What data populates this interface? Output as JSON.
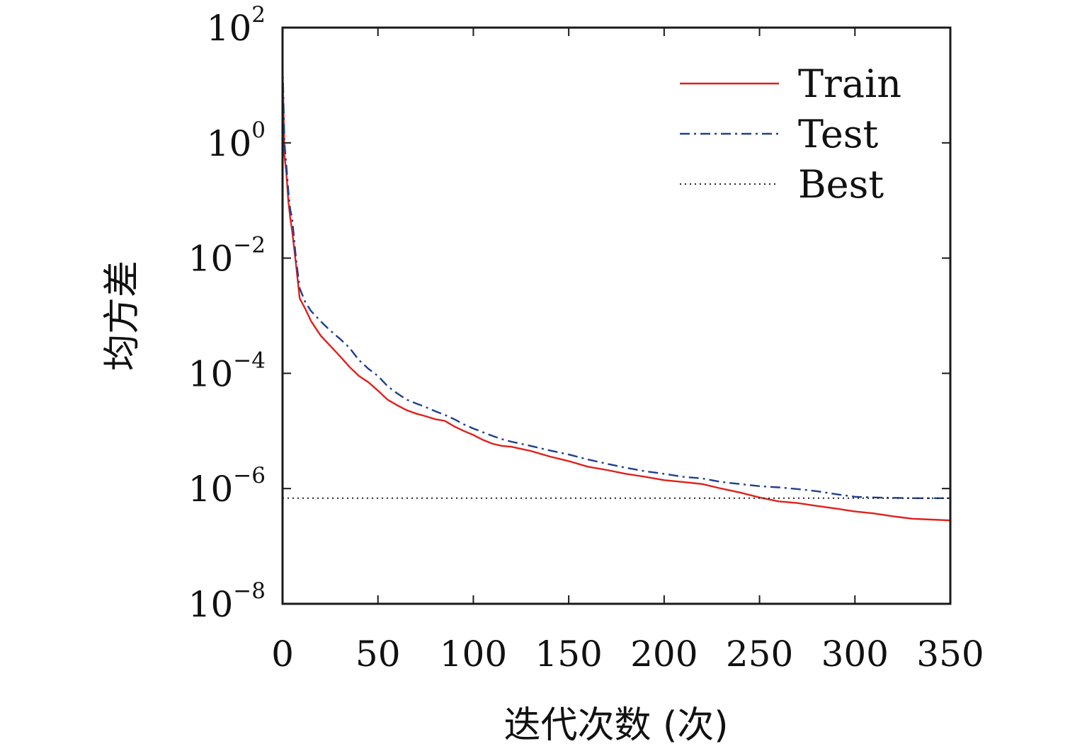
{
  "chart_data": {
    "type": "line",
    "xlabel": "迭代次数 (次)",
    "ylabel": "均方差",
    "xlim": [
      0,
      350
    ],
    "ylim": [
      1e-08,
      100
    ],
    "yscale": "log",
    "x_ticks": [
      {
        "value": 0,
        "label": "0"
      },
      {
        "value": 50,
        "label": "50"
      },
      {
        "value": 100,
        "label": "100"
      },
      {
        "value": 150,
        "label": "150"
      },
      {
        "value": 200,
        "label": "200"
      },
      {
        "value": 250,
        "label": "250"
      },
      {
        "value": 300,
        "label": "300"
      },
      {
        "value": 350,
        "label": "350"
      }
    ],
    "y_ticks": [
      {
        "value": 100,
        "base": "10",
        "exp": "2"
      },
      {
        "value": 1,
        "base": "10",
        "exp": "0"
      },
      {
        "value": 0.01,
        "base": "10",
        "exp": "−2"
      },
      {
        "value": 0.0001,
        "base": "10",
        "exp": "−4"
      },
      {
        "value": 1e-06,
        "base": "10",
        "exp": "−6"
      },
      {
        "value": 1e-08,
        "base": "10",
        "exp": "−8"
      }
    ],
    "grid": false,
    "legend_position": "top-right",
    "series": [
      {
        "name": "Train",
        "color": "#e0201b",
        "style": "solid",
        "points": [
          [
            0,
            20
          ],
          [
            1,
            0.6
          ],
          [
            2,
            0.3
          ],
          [
            3,
            0.1
          ],
          [
            4,
            0.05
          ],
          [
            5,
            0.03
          ],
          [
            7,
            0.008
          ],
          [
            9,
            0.002
          ],
          [
            12,
            0.0013
          ],
          [
            15,
            0.0008
          ],
          [
            20,
            0.00045
          ],
          [
            25,
            0.0003
          ],
          [
            30,
            0.0002
          ],
          [
            35,
            0.00013
          ],
          [
            40,
            9e-05
          ],
          [
            45,
            7e-05
          ],
          [
            50,
            5e-05
          ],
          [
            55,
            3.5e-05
          ],
          [
            60,
            2.8e-05
          ],
          [
            65,
            2.3e-05
          ],
          [
            70,
            2e-05
          ],
          [
            75,
            1.8e-05
          ],
          [
            80,
            1.6e-05
          ],
          [
            85,
            1.5e-05
          ],
          [
            90,
            1.2e-05
          ],
          [
            95,
            1e-05
          ],
          [
            100,
            8.5e-06
          ],
          [
            105,
            7e-06
          ],
          [
            110,
            6e-06
          ],
          [
            115,
            5.5e-06
          ],
          [
            120,
            5.3e-06
          ],
          [
            130,
            4.5e-06
          ],
          [
            140,
            3.6e-06
          ],
          [
            150,
            3e-06
          ],
          [
            160,
            2.4e-06
          ],
          [
            170,
            2.1e-06
          ],
          [
            180,
            1.8e-06
          ],
          [
            190,
            1.6e-06
          ],
          [
            200,
            1.4e-06
          ],
          [
            210,
            1.3e-06
          ],
          [
            220,
            1.2e-06
          ],
          [
            230,
            1e-06
          ],
          [
            240,
            8.5e-07
          ],
          [
            250,
            7e-07
          ],
          [
            260,
            6e-07
          ],
          [
            270,
            5.6e-07
          ],
          [
            280,
            5e-07
          ],
          [
            290,
            4.5e-07
          ],
          [
            300,
            4e-07
          ],
          [
            310,
            3.7e-07
          ],
          [
            320,
            3.3e-07
          ],
          [
            330,
            3e-07
          ],
          [
            340,
            2.9e-07
          ],
          [
            350,
            2.8e-07
          ]
        ]
      },
      {
        "name": "Test",
        "color": "#1f3f8f",
        "style": "dashdot",
        "points": [
          [
            0,
            25
          ],
          [
            1,
            1.0
          ],
          [
            2,
            0.4
          ],
          [
            3,
            0.15
          ],
          [
            4,
            0.07
          ],
          [
            5,
            0.05
          ],
          [
            7,
            0.01
          ],
          [
            9,
            0.003
          ],
          [
            12,
            0.0017
          ],
          [
            15,
            0.0012
          ],
          [
            20,
            0.0008
          ],
          [
            25,
            0.00055
          ],
          [
            30,
            0.0004
          ],
          [
            35,
            0.00028
          ],
          [
            40,
            0.00017
          ],
          [
            45,
            0.00012
          ],
          [
            50,
            9e-05
          ],
          [
            55,
            6e-05
          ],
          [
            60,
            4.5e-05
          ],
          [
            65,
            3.5e-05
          ],
          [
            70,
            3e-05
          ],
          [
            75,
            2.6e-05
          ],
          [
            80,
            2.2e-05
          ],
          [
            85,
            1.9e-05
          ],
          [
            90,
            1.6e-05
          ],
          [
            95,
            1.3e-05
          ],
          [
            100,
            1.1e-05
          ],
          [
            105,
            9.5e-06
          ],
          [
            110,
            8.2e-06
          ],
          [
            115,
            7.2e-06
          ],
          [
            120,
            6.5e-06
          ],
          [
            130,
            5.5e-06
          ],
          [
            140,
            4.6e-06
          ],
          [
            150,
            3.9e-06
          ],
          [
            160,
            3.2e-06
          ],
          [
            170,
            2.7e-06
          ],
          [
            180,
            2.3e-06
          ],
          [
            190,
            2e-06
          ],
          [
            200,
            1.8e-06
          ],
          [
            210,
            1.6e-06
          ],
          [
            220,
            1.5e-06
          ],
          [
            230,
            1.3e-06
          ],
          [
            240,
            1.2e-06
          ],
          [
            250,
            1.1e-06
          ],
          [
            260,
            1.05e-06
          ],
          [
            270,
            9.8e-07
          ],
          [
            280,
            9e-07
          ],
          [
            290,
            8e-07
          ],
          [
            300,
            7.2e-07
          ],
          [
            310,
            7e-07
          ],
          [
            320,
            6.9e-07
          ],
          [
            330,
            6.8e-07
          ],
          [
            340,
            6.8e-07
          ],
          [
            350,
            6.8e-07
          ]
        ]
      },
      {
        "name": "Best",
        "color": "#222222",
        "style": "dotted",
        "points": [
          [
            0,
            6.8e-07
          ],
          [
            350,
            6.8e-07
          ]
        ]
      }
    ]
  }
}
